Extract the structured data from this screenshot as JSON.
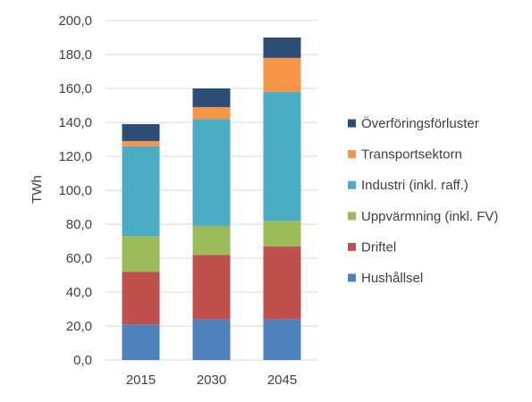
{
  "chart_data": {
    "type": "bar",
    "stacked": true,
    "title": "",
    "xlabel": "",
    "ylabel": "TWh",
    "ylim": [
      0,
      200
    ],
    "ytick_step": 20,
    "ytick_labels": [
      "0,0",
      "20,0",
      "40,0",
      "60,0",
      "80,0",
      "100,0",
      "120,0",
      "140,0",
      "160,0",
      "180,0",
      "200,0"
    ],
    "grid": true,
    "legend_position": "right",
    "categories": [
      "2015",
      "2030",
      "2045"
    ],
    "series": [
      {
        "name": "Hushållsel",
        "color": "#4F81BD",
        "values": [
          21,
          24,
          24
        ]
      },
      {
        "name": "Driftel",
        "color": "#C0504D",
        "values": [
          31,
          38,
          43
        ]
      },
      {
        "name": "Uppvärmning (inkl. FV)",
        "color": "#9BBB59",
        "values": [
          21,
          17,
          15
        ]
      },
      {
        "name": "Industri (inkl. raff.)",
        "color": "#4BACC6",
        "values": [
          53,
          63,
          76
        ]
      },
      {
        "name": "Transportsektorn",
        "color": "#F79646",
        "values": [
          3,
          7,
          20
        ]
      },
      {
        "name": "Överföringsförluster",
        "color": "#2C4D75",
        "values": [
          10,
          11,
          12
        ]
      }
    ]
  }
}
